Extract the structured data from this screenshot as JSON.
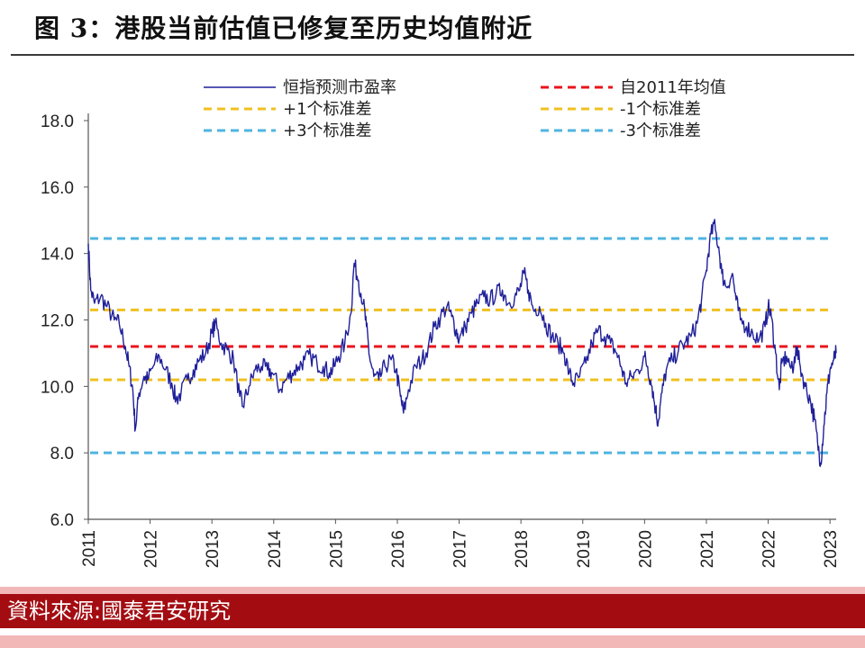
{
  "figure_title": "图 3：港股当前估值已修复至历史均值附近",
  "source": "資料來源:國泰君安研究",
  "colors": {
    "pe_line": "#1f1f9a",
    "mean": "#e8141c",
    "one_sd": "#f0c020",
    "three_sd": "#4fb4e0",
    "axis": "#555555",
    "source_bar": "#a30d12"
  },
  "chart_data": {
    "type": "line",
    "title": "",
    "xlabel": "",
    "ylabel": "",
    "ylim": [
      6.0,
      18.0
    ],
    "y_ticks": [
      "6.0",
      "8.0",
      "10.0",
      "12.0",
      "14.0",
      "16.0",
      "18.0"
    ],
    "x_ticks": [
      "2011",
      "2012",
      "2013",
      "2014",
      "2015",
      "2016",
      "2017",
      "2018",
      "2019",
      "2020",
      "2021",
      "2022",
      "2023"
    ],
    "xlim": [
      2011.0,
      2023.1
    ],
    "legend_position": "top",
    "grid": false,
    "series": [
      {
        "name": "恒指预测市盈率",
        "style": "solid",
        "points": [
          [
            2011.0,
            14.3
          ],
          [
            2011.04,
            12.9
          ],
          [
            2011.1,
            12.5
          ],
          [
            2011.2,
            12.7
          ],
          [
            2011.3,
            12.4
          ],
          [
            2011.42,
            12.0
          ],
          [
            2011.5,
            11.9
          ],
          [
            2011.6,
            11.2
          ],
          [
            2011.66,
            10.6
          ],
          [
            2011.72,
            9.9
          ],
          [
            2011.76,
            8.7
          ],
          [
            2011.82,
            9.8
          ],
          [
            2011.9,
            10.3
          ],
          [
            2011.96,
            10.2
          ],
          [
            2012.05,
            10.6
          ],
          [
            2012.15,
            10.9
          ],
          [
            2012.25,
            10.5
          ],
          [
            2012.35,
            10.1
          ],
          [
            2012.42,
            9.6
          ],
          [
            2012.5,
            9.8
          ],
          [
            2012.6,
            10.2
          ],
          [
            2012.7,
            10.5
          ],
          [
            2012.8,
            10.8
          ],
          [
            2012.9,
            11.0
          ],
          [
            2013.0,
            11.6
          ],
          [
            2013.05,
            11.9
          ],
          [
            2013.15,
            11.3
          ],
          [
            2013.25,
            11.1
          ],
          [
            2013.35,
            10.8
          ],
          [
            2013.45,
            9.7
          ],
          [
            2013.5,
            9.4
          ],
          [
            2013.6,
            10.0
          ],
          [
            2013.7,
            10.5
          ],
          [
            2013.8,
            10.6
          ],
          [
            2013.9,
            10.5
          ],
          [
            2013.98,
            10.4
          ],
          [
            2014.1,
            9.9
          ],
          [
            2014.2,
            10.2
          ],
          [
            2014.3,
            10.4
          ],
          [
            2014.4,
            10.6
          ],
          [
            2014.5,
            10.8
          ],
          [
            2014.6,
            10.9
          ],
          [
            2014.7,
            10.7
          ],
          [
            2014.8,
            10.6
          ],
          [
            2014.9,
            10.4
          ],
          [
            2014.98,
            10.6
          ],
          [
            2015.05,
            10.9
          ],
          [
            2015.15,
            11.3
          ],
          [
            2015.25,
            12.2
          ],
          [
            2015.3,
            13.7
          ],
          [
            2015.37,
            13.2
          ],
          [
            2015.45,
            12.5
          ],
          [
            2015.5,
            11.8
          ],
          [
            2015.55,
            10.9
          ],
          [
            2015.62,
            10.3
          ],
          [
            2015.7,
            10.2
          ],
          [
            2015.8,
            10.6
          ],
          [
            2015.9,
            10.8
          ],
          [
            2015.98,
            10.5
          ],
          [
            2016.05,
            9.7
          ],
          [
            2016.1,
            9.2
          ],
          [
            2016.18,
            9.9
          ],
          [
            2016.3,
            10.6
          ],
          [
            2016.4,
            10.8
          ],
          [
            2016.5,
            11.2
          ],
          [
            2016.6,
            11.8
          ],
          [
            2016.7,
            12.1
          ],
          [
            2016.8,
            12.4
          ],
          [
            2016.88,
            12.1
          ],
          [
            2016.95,
            11.7
          ],
          [
            2017.0,
            11.4
          ],
          [
            2017.1,
            11.8
          ],
          [
            2017.2,
            12.2
          ],
          [
            2017.3,
            12.5
          ],
          [
            2017.4,
            12.7
          ],
          [
            2017.5,
            12.6
          ],
          [
            2017.6,
            12.8
          ],
          [
            2017.7,
            12.9
          ],
          [
            2017.8,
            12.5
          ],
          [
            2017.9,
            12.7
          ],
          [
            2017.98,
            12.9
          ],
          [
            2018.05,
            13.4
          ],
          [
            2018.12,
            12.9
          ],
          [
            2018.2,
            12.3
          ],
          [
            2018.3,
            12.4
          ],
          [
            2018.4,
            11.9
          ],
          [
            2018.5,
            11.5
          ],
          [
            2018.6,
            11.3
          ],
          [
            2018.7,
            11.0
          ],
          [
            2018.78,
            10.4
          ],
          [
            2018.85,
            10.1
          ],
          [
            2018.95,
            10.3
          ],
          [
            2019.05,
            10.7
          ],
          [
            2019.15,
            11.3
          ],
          [
            2019.25,
            11.7
          ],
          [
            2019.35,
            11.5
          ],
          [
            2019.45,
            11.3
          ],
          [
            2019.55,
            11.0
          ],
          [
            2019.62,
            10.6
          ],
          [
            2019.7,
            10.1
          ],
          [
            2019.8,
            10.3
          ],
          [
            2019.9,
            10.5
          ],
          [
            2020.0,
            10.9
          ],
          [
            2020.05,
            10.6
          ],
          [
            2020.12,
            10.0
          ],
          [
            2020.18,
            9.3
          ],
          [
            2020.22,
            8.9
          ],
          [
            2020.28,
            9.8
          ],
          [
            2020.35,
            10.5
          ],
          [
            2020.45,
            10.8
          ],
          [
            2020.55,
            11.1
          ],
          [
            2020.65,
            11.3
          ],
          [
            2020.75,
            11.5
          ],
          [
            2020.85,
            11.9
          ],
          [
            2020.92,
            12.6
          ],
          [
            2021.0,
            13.5
          ],
          [
            2021.05,
            14.3
          ],
          [
            2021.12,
            14.9
          ],
          [
            2021.2,
            14.2
          ],
          [
            2021.25,
            13.4
          ],
          [
            2021.32,
            13.0
          ],
          [
            2021.42,
            13.4
          ],
          [
            2021.48,
            12.6
          ],
          [
            2021.55,
            12.0
          ],
          [
            2021.65,
            11.8
          ],
          [
            2021.75,
            11.6
          ],
          [
            2021.85,
            11.4
          ],
          [
            2021.95,
            11.8
          ],
          [
            2022.0,
            12.4
          ],
          [
            2022.05,
            12.1
          ],
          [
            2022.12,
            11.0
          ],
          [
            2022.18,
            9.9
          ],
          [
            2022.22,
            10.7
          ],
          [
            2022.3,
            10.9
          ],
          [
            2022.4,
            10.4
          ],
          [
            2022.45,
            11.2
          ],
          [
            2022.52,
            10.6
          ],
          [
            2022.6,
            10.0
          ],
          [
            2022.68,
            9.6
          ],
          [
            2022.75,
            9.0
          ],
          [
            2022.8,
            8.3
          ],
          [
            2022.85,
            7.7
          ],
          [
            2022.9,
            8.8
          ],
          [
            2022.95,
            9.8
          ],
          [
            2023.0,
            10.5
          ],
          [
            2023.06,
            10.8
          ],
          [
            2023.1,
            11.0
          ]
        ]
      },
      {
        "name": "自2011年均值",
        "style": "dashed",
        "value": 11.2
      },
      {
        "name": "+1个标准差",
        "style": "dashed",
        "value": 12.3
      },
      {
        "name": "-1个标准差",
        "style": "dashed",
        "value": 10.2
      },
      {
        "name": "+3个标准差",
        "style": "dashed",
        "value": 14.45
      },
      {
        "name": "-3个标准差",
        "style": "dashed",
        "value": 8.0
      }
    ]
  }
}
